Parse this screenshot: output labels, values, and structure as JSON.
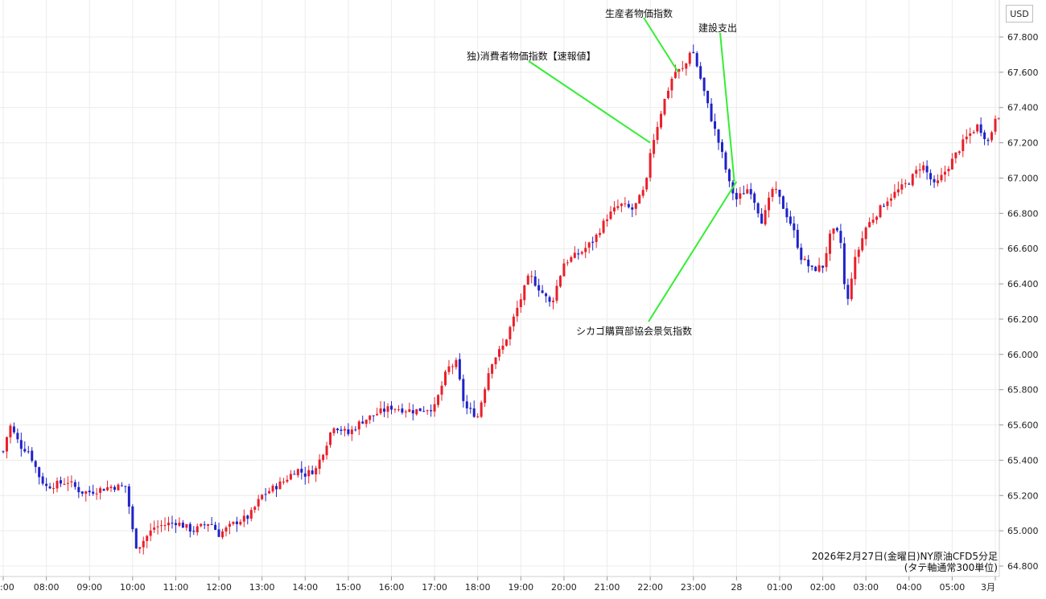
{
  "currency_button": "USD",
  "caption": {
    "line1": "2026年2月27日(金曜日)NY原油CFD5分足",
    "line2": "(タテ軸通常300単位)"
  },
  "annotations": [
    {
      "text": "生産者物価指数",
      "time": 22.65
    },
    {
      "text": "建設支出",
      "time": 23.95
    },
    {
      "text": "独)消費者物価指数【速報値】",
      "time": 22.0
    },
    {
      "text": "シカゴ購買部協会景気指数",
      "time": 24.0
    }
  ],
  "colors": {
    "up": "#e8202a",
    "down": "#1e22c8",
    "leader": "#33ee33",
    "grid": "#ececec"
  },
  "chart_data": {
    "type": "candlestick",
    "title": "",
    "xlabel": "",
    "ylabel": "",
    "x_ticks": [
      ":00",
      "08:00",
      "09:00",
      "10:00",
      "11:00",
      "12:00",
      "13:00",
      "14:00",
      "15:00",
      "16:00",
      "17:00",
      "18:00",
      "19:00",
      "20:00",
      "21:00",
      "22:00",
      "23:00",
      "28",
      "01:00",
      "02:00",
      "03:00",
      "04:00",
      "05:00",
      "3月"
    ],
    "x_tick_hours": [
      7.0,
      8.0,
      9.0,
      10.0,
      11.0,
      12.0,
      13.0,
      14.0,
      15.0,
      16.0,
      17.0,
      18.0,
      19.0,
      20.0,
      21.0,
      22.0,
      23.0,
      24.0,
      25.0,
      26.0,
      27.0,
      28.0,
      29.0,
      30.0
    ],
    "y_ticks": [
      "67.800",
      "67.600",
      "67.400",
      "67.200",
      "67.000",
      "66.800",
      "66.600",
      "66.400",
      "66.200",
      "66.000",
      "65.800",
      "65.600",
      "65.400",
      "65.200",
      "65.000",
      "64.800"
    ],
    "ylim": [
      64.78,
      67.83
    ],
    "grid": true,
    "price_path": [
      {
        "time": 7.0,
        "price": 65.45
      },
      {
        "time": 7.15,
        "price": 65.6
      },
      {
        "time": 7.4,
        "price": 65.48
      },
      {
        "time": 7.6,
        "price": 65.45
      },
      {
        "time": 7.85,
        "price": 65.3
      },
      {
        "time": 8.0,
        "price": 65.25
      },
      {
        "time": 8.5,
        "price": 65.28
      },
      {
        "time": 8.8,
        "price": 65.22
      },
      {
        "time": 9.0,
        "price": 65.22
      },
      {
        "time": 9.5,
        "price": 65.25
      },
      {
        "time": 9.85,
        "price": 65.25
      },
      {
        "time": 10.0,
        "price": 65.0
      },
      {
        "time": 10.1,
        "price": 64.9
      },
      {
        "time": 10.5,
        "price": 65.02
      },
      {
        "time": 11.0,
        "price": 65.05
      },
      {
        "time": 11.4,
        "price": 65.0
      },
      {
        "time": 11.8,
        "price": 65.05
      },
      {
        "time": 12.0,
        "price": 64.98
      },
      {
        "time": 12.4,
        "price": 65.05
      },
      {
        "time": 12.7,
        "price": 65.08
      },
      {
        "time": 13.0,
        "price": 65.2
      },
      {
        "time": 13.5,
        "price": 65.28
      },
      {
        "time": 13.8,
        "price": 65.35
      },
      {
        "time": 14.0,
        "price": 65.32
      },
      {
        "time": 14.25,
        "price": 65.35
      },
      {
        "time": 14.5,
        "price": 65.5
      },
      {
        "time": 14.65,
        "price": 65.6
      },
      {
        "time": 15.0,
        "price": 65.55
      },
      {
        "time": 15.3,
        "price": 65.62
      },
      {
        "time": 15.7,
        "price": 65.67
      },
      {
        "time": 16.0,
        "price": 65.7
      },
      {
        "time": 16.5,
        "price": 65.68
      },
      {
        "time": 17.0,
        "price": 65.7
      },
      {
        "time": 17.3,
        "price": 65.92
      },
      {
        "time": 17.5,
        "price": 65.95
      },
      {
        "time": 17.7,
        "price": 65.7
      },
      {
        "time": 18.0,
        "price": 65.65
      },
      {
        "time": 18.3,
        "price": 65.95
      },
      {
        "time": 18.6,
        "price": 66.05
      },
      {
        "time": 18.9,
        "price": 66.25
      },
      {
        "time": 19.2,
        "price": 66.45
      },
      {
        "time": 19.5,
        "price": 66.35
      },
      {
        "time": 19.7,
        "price": 66.28
      },
      {
        "time": 20.0,
        "price": 66.52
      },
      {
        "time": 20.4,
        "price": 66.58
      },
      {
        "time": 20.7,
        "price": 66.65
      },
      {
        "time": 21.0,
        "price": 66.78
      },
      {
        "time": 21.3,
        "price": 66.85
      },
      {
        "time": 21.6,
        "price": 66.82
      },
      {
        "time": 21.9,
        "price": 66.95
      },
      {
        "time": 22.0,
        "price": 67.15
      },
      {
        "time": 22.3,
        "price": 67.42
      },
      {
        "time": 22.55,
        "price": 67.6
      },
      {
        "time": 22.8,
        "price": 67.62
      },
      {
        "time": 22.95,
        "price": 67.75
      },
      {
        "time": 23.15,
        "price": 67.58
      },
      {
        "time": 23.4,
        "price": 67.35
      },
      {
        "time": 23.65,
        "price": 67.15
      },
      {
        "time": 23.85,
        "price": 66.95
      },
      {
        "time": 24.0,
        "price": 66.88
      },
      {
        "time": 24.3,
        "price": 66.95
      },
      {
        "time": 24.6,
        "price": 66.75
      },
      {
        "time": 24.85,
        "price": 66.95
      },
      {
        "time": 25.0,
        "price": 66.88
      },
      {
        "time": 25.3,
        "price": 66.72
      },
      {
        "time": 25.5,
        "price": 66.55
      },
      {
        "time": 25.75,
        "price": 66.48
      },
      {
        "time": 26.0,
        "price": 66.5
      },
      {
        "time": 26.2,
        "price": 66.7
      },
      {
        "time": 26.4,
        "price": 66.68
      },
      {
        "time": 26.55,
        "price": 66.25
      },
      {
        "time": 26.7,
        "price": 66.5
      },
      {
        "time": 27.0,
        "price": 66.72
      },
      {
        "time": 27.5,
        "price": 66.88
      },
      {
        "time": 28.0,
        "price": 66.98
      },
      {
        "time": 28.3,
        "price": 67.08
      },
      {
        "time": 28.6,
        "price": 66.95
      },
      {
        "time": 29.0,
        "price": 67.1
      },
      {
        "time": 29.3,
        "price": 67.22
      },
      {
        "time": 29.6,
        "price": 67.3
      },
      {
        "time": 29.85,
        "price": 67.2
      },
      {
        "time": 30.0,
        "price": 67.35
      },
      {
        "time": 30.15,
        "price": 67.37
      }
    ]
  }
}
